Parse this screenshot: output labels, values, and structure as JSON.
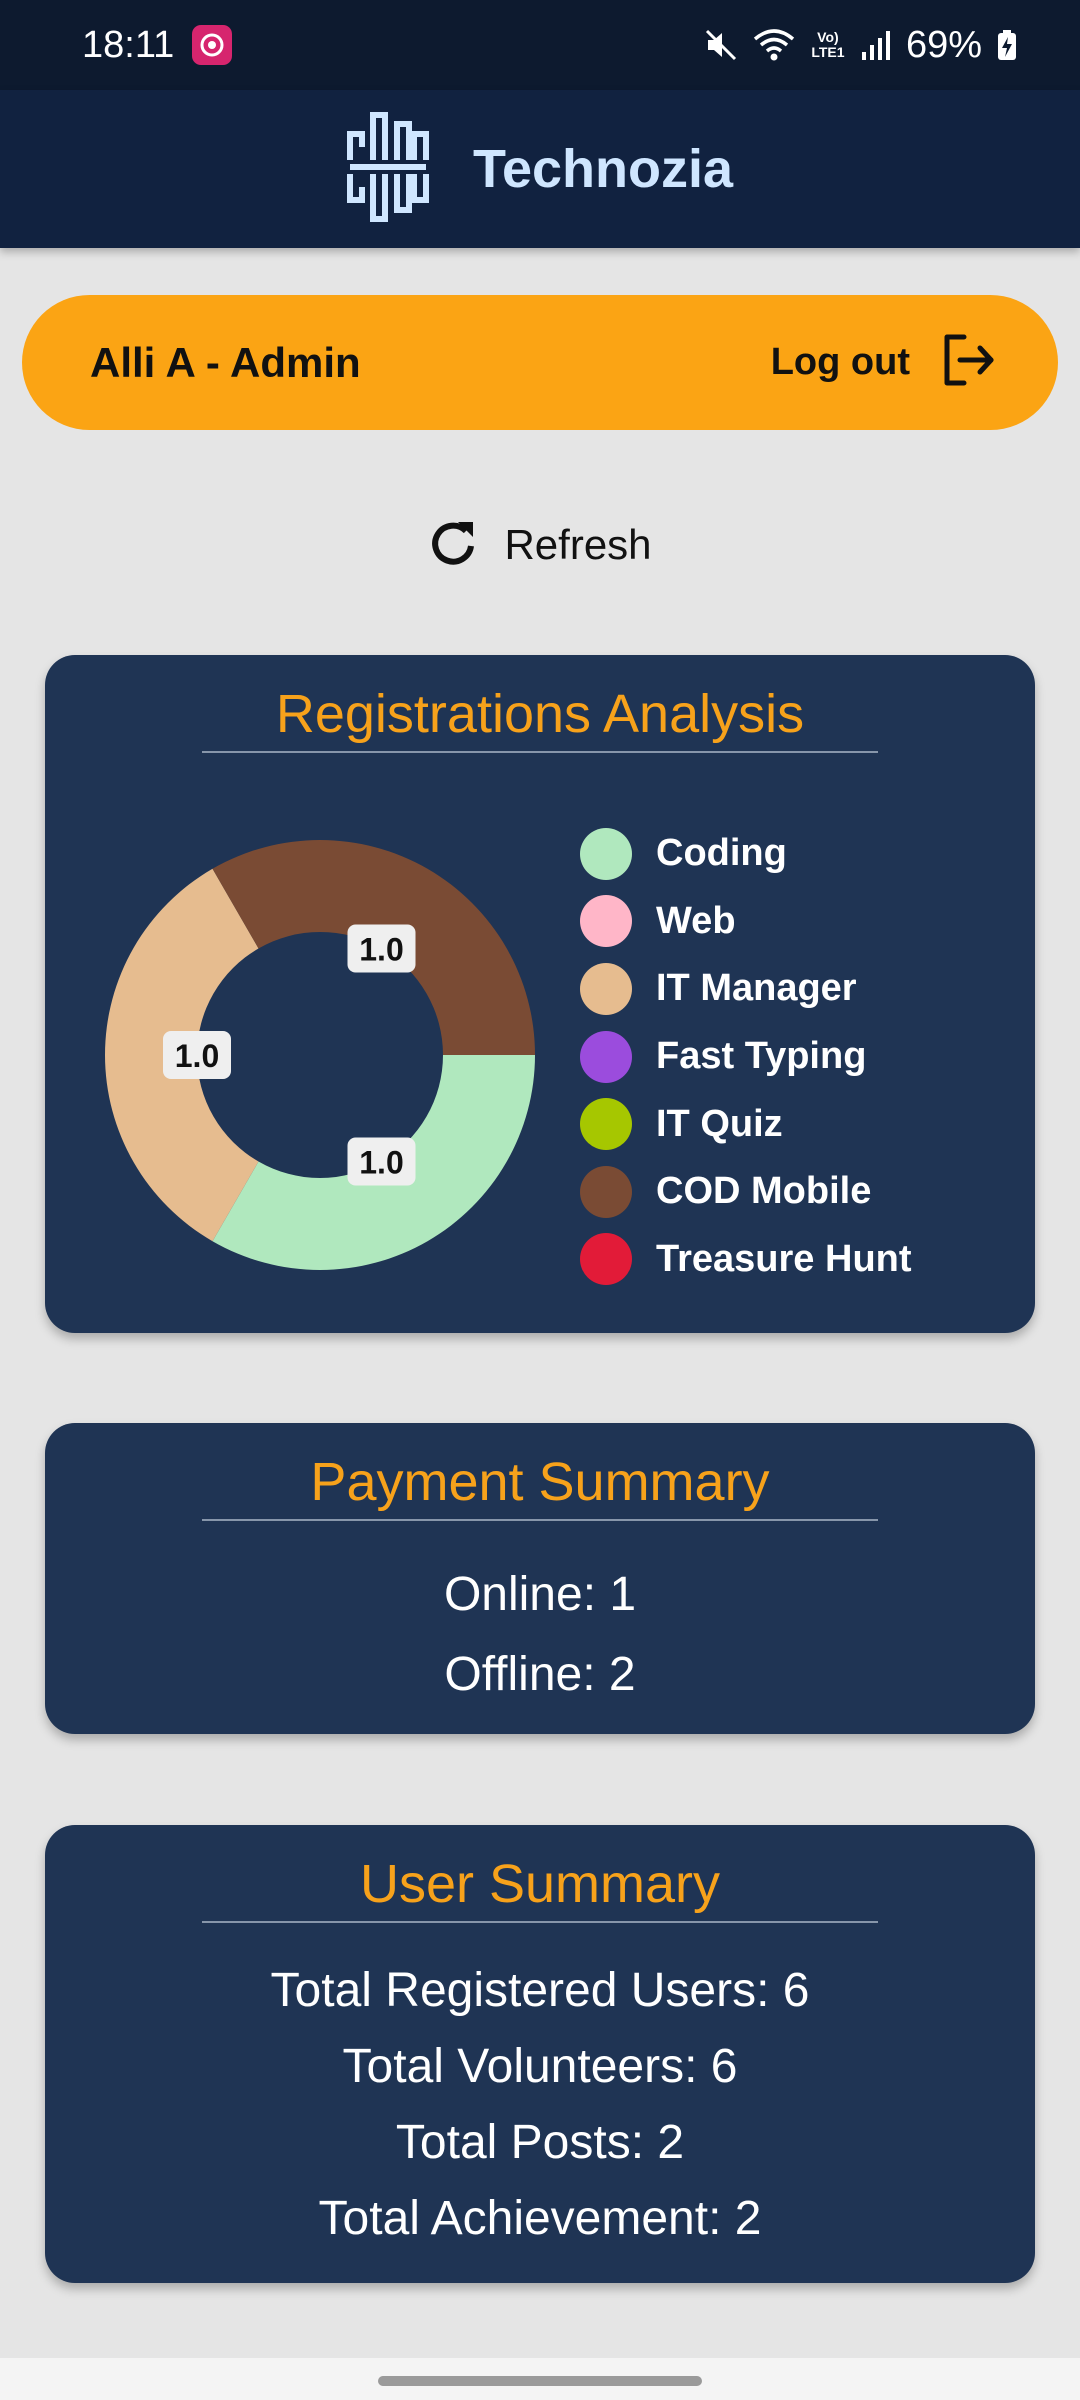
{
  "status_bar": {
    "time": "18:11",
    "battery": "69%",
    "network_label": "Vo) LTE1"
  },
  "header": {
    "title": "Technozia"
  },
  "user_bar": {
    "name": "Alli A - Admin",
    "logout_label": "Log out"
  },
  "refresh": {
    "label": "Refresh"
  },
  "registrations": {
    "title": "Registrations Analysis",
    "legend": [
      {
        "label": "Coding",
        "color": "#b0e8be"
      },
      {
        "label": "Web",
        "color": "#ffb6c8"
      },
      {
        "label": "IT Manager",
        "color": "#e6bc8f"
      },
      {
        "label": "Fast Typing",
        "color": "#9b4cdd"
      },
      {
        "label": "IT Quiz",
        "color": "#a6c700"
      },
      {
        "label": "COD Mobile",
        "color": "#7a4b34"
      },
      {
        "label": "Treasure Hunt",
        "color": "#e21b38"
      }
    ]
  },
  "chart_data": {
    "type": "pie",
    "categories": [
      "Coding",
      "Web",
      "IT Manager",
      "Fast Typing",
      "IT Quiz",
      "COD Mobile",
      "Treasure Hunt"
    ],
    "values": [
      1.0,
      0,
      1.0,
      0,
      0,
      1.0,
      0
    ],
    "data_labels": [
      "1.0",
      "",
      "1.0",
      "",
      "",
      "1.0",
      ""
    ],
    "colors": [
      "#b0e8be",
      "#ffb6c8",
      "#e6bc8f",
      "#9b4cdd",
      "#a6c700",
      "#7a4b34",
      "#e21b38"
    ],
    "donut": true,
    "legend_position": "right"
  },
  "payment": {
    "title": "Payment Summary",
    "lines": [
      "Online: 1",
      "Offline: 2"
    ]
  },
  "users": {
    "title": "User Summary",
    "lines": [
      "Total Registered Users: 6",
      "Total Volunteers: 6",
      "Total Posts: 2",
      "Total Achievement: 2"
    ]
  }
}
